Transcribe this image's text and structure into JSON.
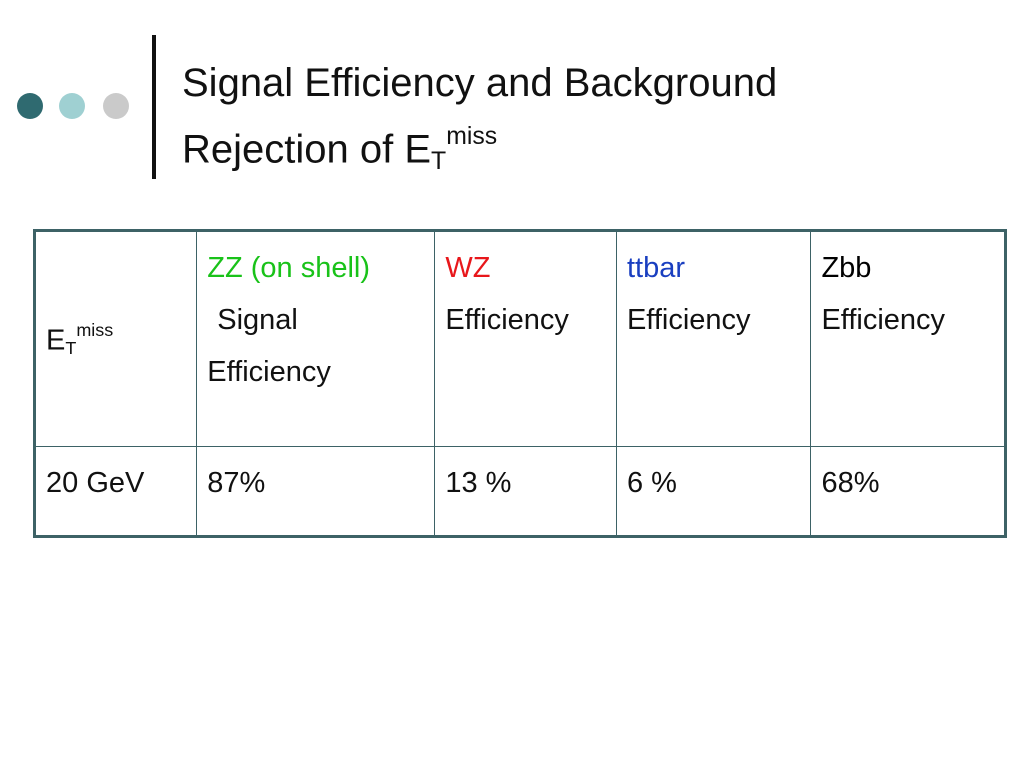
{
  "title": {
    "lines": [
      "Signal Efficiency and Background",
      "Rejection of E"
    ],
    "subscript": "T",
    "superscript": "miss"
  },
  "table": {
    "header": [
      {
        "text": "E",
        "subscript": "T",
        "superscript": "miss"
      },
      {
        "name": "ZZ (on shell)",
        "color": "#19c219",
        "lines": [
          "Signal",
          "Efficiency"
        ]
      },
      {
        "name": "WZ",
        "color": "#e8171b",
        "lines": [
          "Efficiency"
        ]
      },
      {
        "name": "ttbar",
        "color": "#1a3fc0",
        "lines": [
          "Efficiency"
        ]
      },
      {
        "name": "Zbb",
        "color": "#000000",
        "lines": [
          "Efficiency"
        ]
      }
    ],
    "rows": [
      [
        "20 GeV",
        "87%",
        "13 %",
        "6 %",
        "68%"
      ]
    ]
  }
}
